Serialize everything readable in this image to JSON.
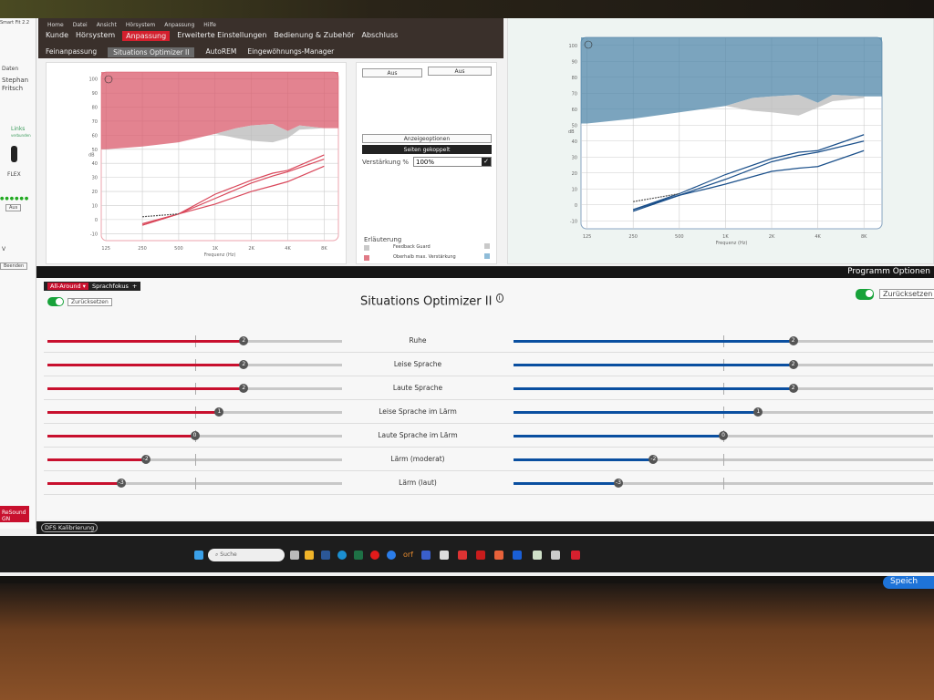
{
  "app": {
    "title": "Smart Fit 2.2",
    "brand": "ReSound GN"
  },
  "menu": {
    "items": [
      "Home",
      "Datei",
      "Ansicht",
      "Hörsystem",
      "Anpassung",
      "Hilfe"
    ]
  },
  "main_tabs": [
    "Kunde",
    "Hörsystem",
    "Anpassung",
    "Erweiterte Einstellungen",
    "Bedienung & Zubehör",
    "Abschluss"
  ],
  "active_main_tab": "Anpassung",
  "sub_tabs": [
    "Feinanpassung",
    "Situations Optimizer II",
    "AutoREM",
    "Eingewöhnungs-Manager"
  ],
  "active_sub_tab": "Situations Optimizer II",
  "sidebar": {
    "section": "Daten",
    "client_first": "Stephan",
    "client_last": "Fritsch",
    "side_label": "Links",
    "side_status": "verbunden",
    "device": "FLEX",
    "off_button": "Aus",
    "collapse": "V",
    "disconnect": "Beenden"
  },
  "middle_panel": {
    "left_off": "Aus",
    "right_off": "Aus",
    "display_options": "Anzeigeoptionen",
    "sides_linked": "Seiten gekoppelt",
    "gain_label": "Verstärkung %",
    "gain_value": "100%",
    "legend_title": "Erläuterung",
    "legend": [
      {
        "label": "Feedback Guard",
        "color": "#c9c9c9"
      },
      {
        "label": "Oberhalb max. Verstärkung",
        "color_left": "#e07a86",
        "color_right": "#8fbcd8"
      }
    ]
  },
  "chart_data": [
    {
      "type": "line",
      "side": "right-ear",
      "color": "#d9475a",
      "ylabel": "dB",
      "xlabel": "Frequenz (Hz)",
      "x_ticks": [
        "125",
        "250",
        "500",
        "1K",
        "2K",
        "4K",
        "8K"
      ],
      "ylim": [
        -15,
        105
      ],
      "y_ticks": [
        -10,
        0,
        10,
        20,
        30,
        40,
        50,
        60,
        70,
        80,
        90,
        100
      ],
      "grid": true,
      "max_gain_boundary": {
        "x": [
          "125",
          "250",
          "500",
          "1K",
          "1.5K",
          "2K",
          "3K",
          "4K",
          "5K",
          "8K"
        ],
        "y": [
          50,
          52,
          55,
          61,
          65,
          67,
          68,
          63,
          67,
          65
        ]
      },
      "feedback_guard_lower": {
        "x": [
          "1K",
          "1.5K",
          "2K",
          "3K",
          "4K",
          "5K",
          "8K"
        ],
        "y": [
          61,
          58,
          56,
          55,
          58,
          64,
          65
        ]
      },
      "series": [
        {
          "x": [
            "250",
            "500",
            "1K",
            "2K",
            "3K",
            "4K",
            "8K"
          ],
          "y": [
            -3,
            4,
            18,
            28,
            33,
            35,
            46
          ]
        },
        {
          "x": [
            "250",
            "500",
            "1K",
            "2K",
            "3K",
            "4K",
            "8K"
          ],
          "y": [
            -4,
            4,
            15,
            26,
            31,
            34,
            43
          ]
        },
        {
          "x": [
            "250",
            "500",
            "1K",
            "2K",
            "3K",
            "4K",
            "8K"
          ],
          "y": [
            -4,
            4,
            11,
            20,
            24,
            27,
            38
          ]
        },
        {
          "x": [
            "250",
            "500"
          ],
          "y": [
            2,
            4
          ],
          "dashed": true
        }
      ]
    },
    {
      "type": "line",
      "side": "left-ear",
      "color": "#1a4f8a",
      "ylabel": "dB",
      "xlabel": "Frequenz (Hz)",
      "x_ticks": [
        "125",
        "250",
        "500",
        "1K",
        "2K",
        "4K",
        "8K"
      ],
      "ylim": [
        -15,
        105
      ],
      "y_ticks": [
        -10,
        0,
        10,
        20,
        30,
        40,
        50,
        60,
        70,
        80,
        90,
        100
      ],
      "grid": true,
      "max_gain_boundary": {
        "x": [
          "125",
          "250",
          "500",
          "1K",
          "1.5K",
          "2K",
          "3K",
          "4K",
          "5K",
          "8K"
        ],
        "y": [
          51,
          54,
          58,
          62,
          67,
          68,
          69,
          64,
          69,
          68
        ]
      },
      "feedback_guard_lower": {
        "x": [
          "1K",
          "1.5K",
          "2K",
          "3K",
          "4K",
          "5K",
          "8K"
        ],
        "y": [
          62,
          59,
          58,
          56,
          61,
          65,
          67
        ]
      },
      "series": [
        {
          "x": [
            "250",
            "500",
            "1K",
            "2K",
            "3K",
            "4K",
            "8K"
          ],
          "y": [
            -3,
            7,
            19,
            29,
            33,
            34,
            44
          ]
        },
        {
          "x": [
            "250",
            "500",
            "1K",
            "2K",
            "3K",
            "4K",
            "8K"
          ],
          "y": [
            -4,
            6,
            16,
            27,
            31,
            33,
            40
          ]
        },
        {
          "x": [
            "250",
            "500",
            "750",
            "1K",
            "2K",
            "3K",
            "4K",
            "8K"
          ],
          "y": [
            -3,
            6,
            10,
            13,
            21,
            23,
            24,
            34
          ]
        },
        {
          "x": [
            "250",
            "500"
          ],
          "y": [
            2,
            7
          ],
          "dashed": true
        }
      ]
    }
  ],
  "program": {
    "options_label": "Programm Optionen",
    "tabs": [
      "All-Around",
      "Sprachfokus"
    ],
    "add": "+",
    "reset": "Zurücksetzen",
    "reset_right": "Zurücksetzen",
    "title": "Situations Optimizer II",
    "info": "i"
  },
  "sliders": {
    "min": -6,
    "max": 6,
    "left_color": "#c8102e",
    "right_color": "#0a4fa0",
    "rows": [
      {
        "label": "Ruhe",
        "left": 2,
        "right": 2
      },
      {
        "label": "Leise Sprache",
        "left": 2,
        "right": 2
      },
      {
        "label": "Laute Sprache",
        "left": 2,
        "right": 2
      },
      {
        "label": "Leise Sprache im Lärm",
        "left": 1,
        "right": 1
      },
      {
        "label": "Laute Sprache im Lärm",
        "left": 0,
        "right": 0
      },
      {
        "label": "Lärm (moderat)",
        "left": -2,
        "right": -2
      },
      {
        "label": "Lärm (laut)",
        "left": -3,
        "right": -3
      }
    ]
  },
  "status": {
    "dfs": "DFS Kalibrierung"
  },
  "taskbar": {
    "search_placeholder": "Suche",
    "speech": "Speich"
  }
}
